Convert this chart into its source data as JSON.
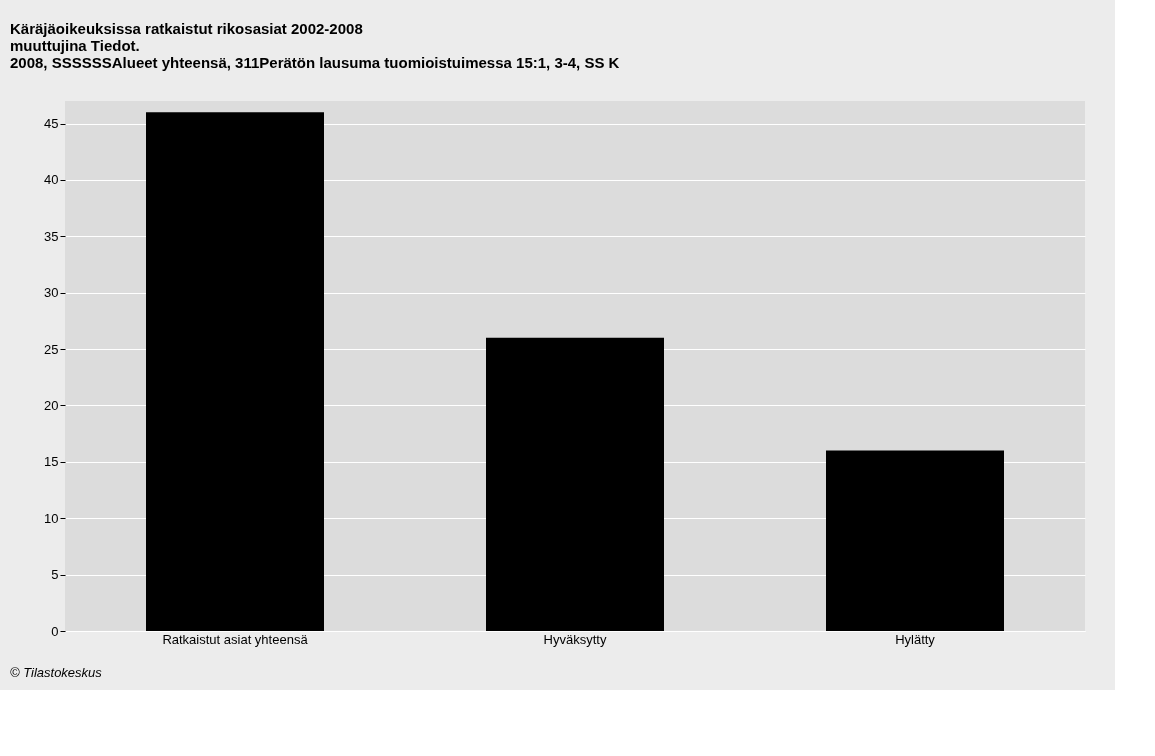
{
  "chart_data": {
    "type": "bar",
    "title": [
      "Käräjäoikeuksissa ratkaistut rikosasiat 2002-2008",
      "muuttujina Tiedot.",
      "2008, SSSSSSAlueet yhteensä, 311Perätön lausuma tuomioistuimessa 15:1, 3-4, SS K"
    ],
    "categories": [
      "Ratkaistut asiat yhteensä",
      "Hyväksytty",
      "Hylätty"
    ],
    "values": [
      46,
      26,
      16
    ],
    "color": "#000000",
    "ylim": [
      0,
      47
    ],
    "yticks": [
      0,
      5,
      10,
      15,
      20,
      25,
      30,
      35,
      40,
      45
    ],
    "grid": "y",
    "annotations": [
      "© Tilastokeskus"
    ]
  }
}
